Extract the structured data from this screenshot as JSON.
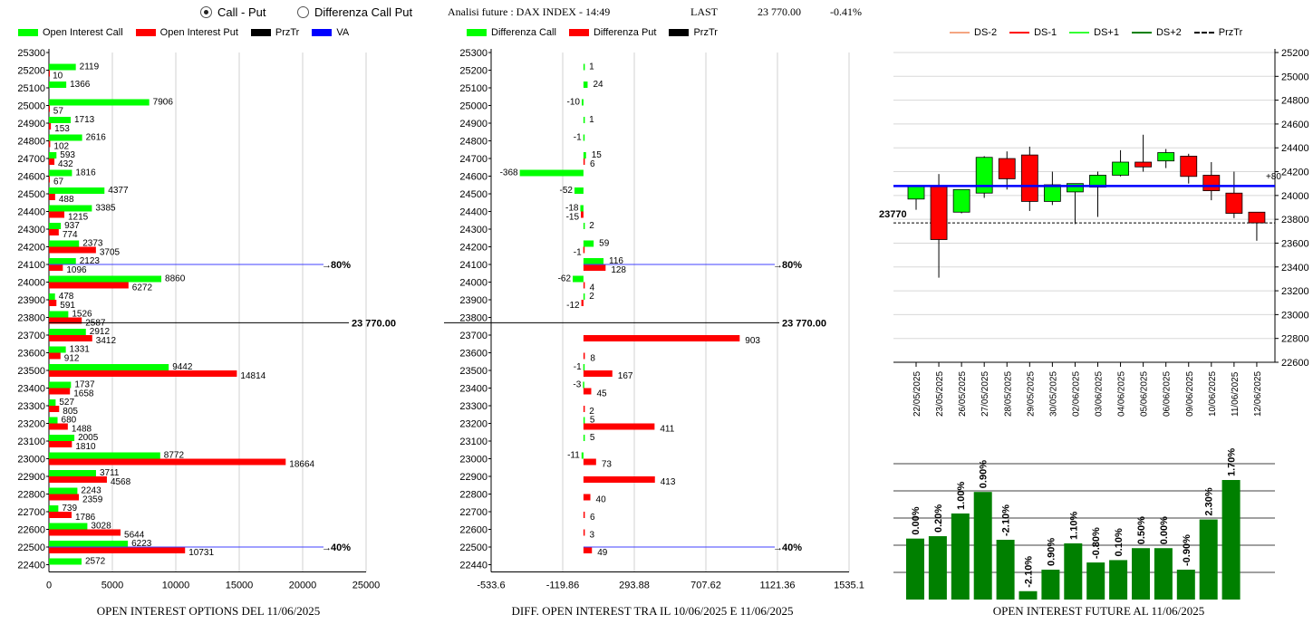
{
  "header": {
    "radio_options": [
      {
        "label": "Call - Put",
        "selected": true
      },
      {
        "label": "Differenza Call Put",
        "selected": false
      }
    ],
    "title": "Analisi future : DAX INDEX - 14:49",
    "last_label": "LAST",
    "last_value": "23 770.00",
    "change": "-0.41%"
  },
  "colors": {
    "call": "#00ff00",
    "put": "#ff0000",
    "przTr": "#000000",
    "va": "#0000ff",
    "dark_green": "#008000"
  },
  "chart_data": [
    {
      "type": "bar",
      "orientation": "horizontal",
      "caption": "OPEN INTEREST OPTIONS DEL 11/06/2025",
      "legend": [
        "Open Interest Call",
        "Open Interest Put",
        "PrzTr",
        "VA"
      ],
      "categories": [
        25300,
        25200,
        25100,
        25000,
        24900,
        24800,
        24700,
        24600,
        24500,
        24400,
        24300,
        24200,
        24100,
        24000,
        23900,
        23800,
        23700,
        23600,
        23500,
        23400,
        23300,
        23200,
        23100,
        23000,
        22900,
        22800,
        22700,
        22600,
        22500,
        22400
      ],
      "series": [
        {
          "name": "Open Interest Call",
          "values": [
            null,
            2119,
            1366,
            7906,
            1713,
            2616,
            593,
            1816,
            4377,
            3385,
            937,
            2373,
            2123,
            8860,
            478,
            1526,
            2912,
            1331,
            9442,
            1737,
            527,
            680,
            2005,
            8772,
            3711,
            2243,
            739,
            3028,
            6223,
            2572
          ]
        },
        {
          "name": "Open Interest Put",
          "values": [
            null,
            10,
            null,
            57,
            153,
            102,
            432,
            67,
            488,
            1215,
            774,
            3705,
            1096,
            6272,
            591,
            2587,
            3412,
            912,
            14814,
            1658,
            805,
            1488,
            1810,
            18664,
            4568,
            2359,
            1786,
            5644,
            10731,
            null
          ]
        }
      ],
      "xlim": [
        0,
        25000
      ],
      "xticks": [
        0,
        5000,
        10000,
        15000,
        20000,
        25000
      ],
      "annotations": [
        {
          "text": "80%",
          "at": 24100
        },
        {
          "text": "23 770.00",
          "at": 23770
        },
        {
          "text": "40%",
          "at": 22500
        }
      ]
    },
    {
      "type": "bar",
      "orientation": "horizontal",
      "caption": "DIFF. OPEN INTEREST TRA IL 10/06/2025 E 11/06/2025",
      "legend": [
        "Differenza Call",
        "Differenza Put",
        "PrzTr"
      ],
      "categories": [
        25300,
        25200,
        25100,
        25000,
        24900,
        24800,
        24700,
        24600,
        24500,
        24400,
        24300,
        24200,
        24100,
        24000,
        23900,
        23800,
        23700,
        23600,
        23500,
        23400,
        23300,
        23200,
        23100,
        23000,
        22900,
        22800,
        22700,
        22600,
        22500,
        22440
      ],
      "series": [
        {
          "name": "Differenza Call",
          "values": [
            null,
            1,
            24,
            -10,
            1,
            -1,
            15,
            -368,
            -52,
            -18,
            2,
            59,
            116,
            -62,
            2,
            null,
            null,
            null,
            -1,
            -3,
            null,
            5,
            5,
            -11,
            null,
            null,
            null,
            null,
            null,
            null
          ]
        },
        {
          "name": "Differenza Put",
          "values": [
            null,
            null,
            null,
            null,
            null,
            null,
            6,
            null,
            null,
            -15,
            null,
            -1,
            128,
            4,
            -12,
            null,
            903,
            8,
            167,
            45,
            2,
            411,
            null,
            73,
            413,
            40,
            6,
            3,
            49,
            null
          ]
        }
      ],
      "xlim": [
        -533.6,
        1535.1
      ],
      "xticks": [
        -533.6,
        -119.86,
        293.88,
        707.62,
        1121.36,
        1535.1
      ],
      "annotations": [
        {
          "text": "80%",
          "at": 24100
        },
        {
          "text": "23 770.00",
          "at": 23770
        },
        {
          "text": "40%",
          "at": 22500
        }
      ]
    },
    {
      "type": "candlestick",
      "legend": [
        "DS-2",
        "DS-1",
        "DS+1",
        "DS+2",
        "PrzTr"
      ],
      "dates": [
        "22/05/2025",
        "23/05/2025",
        "26/05/2025",
        "27/05/2025",
        "28/05/2025",
        "29/05/2025",
        "30/05/2025",
        "02/06/2025",
        "03/06/2025",
        "04/06/2025",
        "05/06/2025",
        "06/06/2025",
        "09/06/2025",
        "10/06/2025",
        "11/06/2025",
        "12/06/2025"
      ],
      "ohlc": [
        {
          "o": 23970,
          "h": 24080,
          "l": 23880,
          "c": 24080
        },
        {
          "o": 24080,
          "h": 24180,
          "l": 23310,
          "c": 23630
        },
        {
          "o": 23860,
          "h": 24050,
          "l": 23850,
          "c": 24050
        },
        {
          "o": 24020,
          "h": 24330,
          "l": 23980,
          "c": 24320
        },
        {
          "o": 24310,
          "h": 24370,
          "l": 24050,
          "c": 24140
        },
        {
          "o": 24340,
          "h": 24410,
          "l": 23870,
          "c": 23950
        },
        {
          "o": 23950,
          "h": 24200,
          "l": 23920,
          "c": 24090
        },
        {
          "o": 24030,
          "h": 24100,
          "l": 23760,
          "c": 24100
        },
        {
          "o": 24070,
          "h": 24200,
          "l": 23820,
          "c": 24170
        },
        {
          "o": 24170,
          "h": 24380,
          "l": 24160,
          "c": 24280
        },
        {
          "o": 24280,
          "h": 24510,
          "l": 24200,
          "c": 24240
        },
        {
          "o": 24290,
          "h": 24390,
          "l": 24230,
          "c": 24360
        },
        {
          "o": 24330,
          "h": 24350,
          "l": 24100,
          "c": 24160
        },
        {
          "o": 24170,
          "h": 24280,
          "l": 23960,
          "c": 24040
        },
        {
          "o": 24020,
          "h": 24200,
          "l": 23810,
          "c": 23850
        },
        {
          "o": 23860,
          "h": 23860,
          "l": 23620,
          "c": 23770
        }
      ],
      "ylim": [
        22600,
        25200
      ],
      "yticks": [
        22600,
        22800,
        23000,
        23200,
        23400,
        23600,
        23800,
        24000,
        24200,
        24400,
        24600,
        24800,
        25000,
        25200
      ],
      "va_level": 24080,
      "last_label": "23770",
      "right_marker": "+80"
    },
    {
      "type": "bar",
      "caption": "OPEN INTEREST FUTURE AL 11/06/2025",
      "labels": [
        "0.00%",
        "0.20%",
        "1.00%",
        "0.90%",
        "-2.10%",
        "-2.10%",
        "0.90%",
        "1.10%",
        "-0.80%",
        "0.10%",
        "0.50%",
        "0.00%",
        "-0.90%",
        "2.30%",
        "1.70%"
      ],
      "values": [
        0.0,
        0.2,
        1.0,
        0.9,
        -2.1,
        -2.1,
        0.9,
        1.1,
        -0.8,
        0.1,
        0.5,
        0.0,
        -0.9,
        2.3,
        1.7
      ],
      "heights_relative": [
        0.51,
        0.53,
        0.72,
        0.9,
        0.5,
        0.07,
        0.25,
        0.47,
        0.31,
        0.33,
        0.43,
        0.43,
        0.25,
        0.67,
        1.0
      ]
    }
  ]
}
